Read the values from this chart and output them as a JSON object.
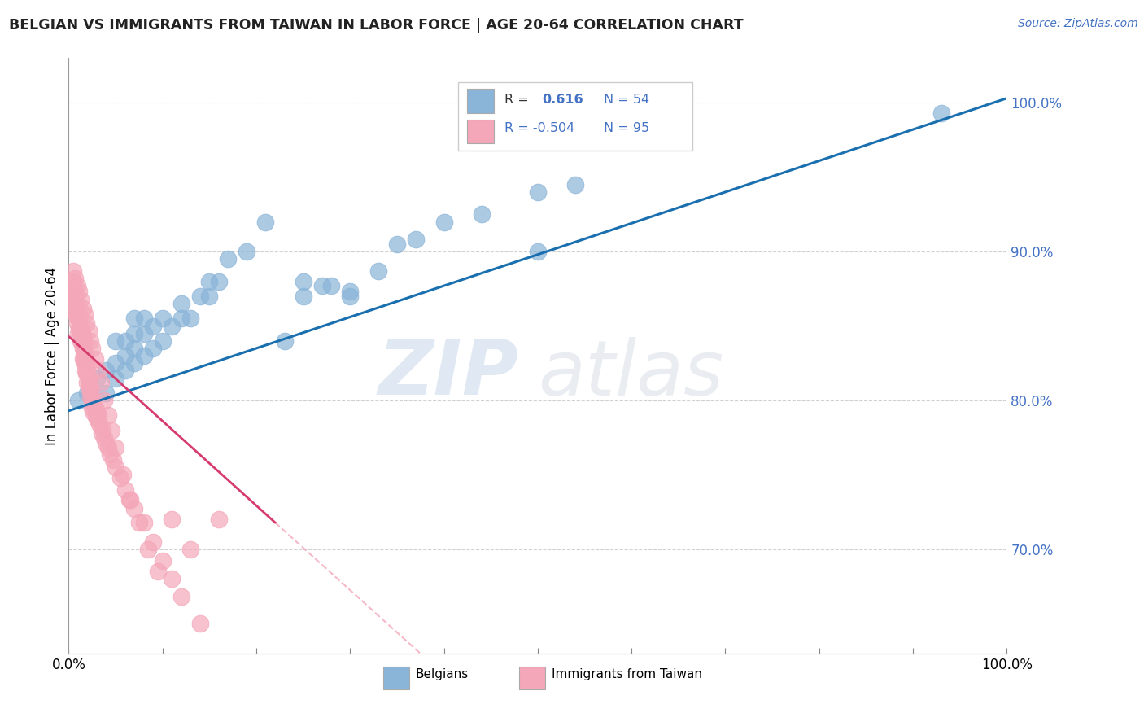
{
  "title": "BELGIAN VS IMMIGRANTS FROM TAIWAN IN LABOR FORCE | AGE 20-64 CORRELATION CHART",
  "source": "Source: ZipAtlas.com",
  "ylabel": "In Labor Force | Age 20-64",
  "xlim": [
    0.0,
    1.0
  ],
  "ylim": [
    0.63,
    1.03
  ],
  "ytick_positions": [
    0.7,
    0.8,
    0.9,
    1.0
  ],
  "ytick_labels": [
    "70.0%",
    "80.0%",
    "90.0%",
    "100.0%"
  ],
  "xtick_positions": [
    0.0,
    0.1,
    0.2,
    0.3,
    0.4,
    0.5,
    0.6,
    0.7,
    0.8,
    0.9,
    1.0
  ],
  "blue_color": "#8ab4d8",
  "pink_color": "#f4a7b9",
  "blue_line_color": "#1a6faf",
  "pink_line_solid_color": "#d63b6e",
  "pink_line_dash_color": "#f4a7b9",
  "watermark_zip": "ZIP",
  "watermark_atlas": "atlas",
  "blue_scatter_x": [
    0.01,
    0.02,
    0.03,
    0.04,
    0.04,
    0.05,
    0.05,
    0.05,
    0.06,
    0.06,
    0.06,
    0.07,
    0.07,
    0.07,
    0.07,
    0.08,
    0.08,
    0.08,
    0.09,
    0.09,
    0.1,
    0.1,
    0.11,
    0.12,
    0.12,
    0.13,
    0.14,
    0.15,
    0.15,
    0.16,
    0.17,
    0.19,
    0.21,
    0.23,
    0.25,
    0.27,
    0.3,
    0.35,
    0.4,
    0.44,
    0.5,
    0.54,
    0.25,
    0.28,
    0.3,
    0.33,
    0.37,
    0.5,
    0.93
  ],
  "blue_scatter_y": [
    0.8,
    0.805,
    0.815,
    0.805,
    0.82,
    0.815,
    0.825,
    0.84,
    0.82,
    0.83,
    0.84,
    0.825,
    0.835,
    0.845,
    0.855,
    0.83,
    0.845,
    0.855,
    0.835,
    0.85,
    0.84,
    0.855,
    0.85,
    0.855,
    0.865,
    0.855,
    0.87,
    0.87,
    0.88,
    0.88,
    0.895,
    0.9,
    0.92,
    0.84,
    0.87,
    0.877,
    0.873,
    0.905,
    0.92,
    0.925,
    0.9,
    0.945,
    0.88,
    0.877,
    0.87,
    0.887,
    0.908,
    0.94,
    0.993
  ],
  "pink_scatter_x": [
    0.003,
    0.004,
    0.005,
    0.006,
    0.006,
    0.007,
    0.007,
    0.008,
    0.008,
    0.009,
    0.009,
    0.01,
    0.01,
    0.01,
    0.011,
    0.011,
    0.012,
    0.012,
    0.013,
    0.013,
    0.014,
    0.014,
    0.015,
    0.015,
    0.015,
    0.016,
    0.016,
    0.017,
    0.017,
    0.018,
    0.018,
    0.019,
    0.019,
    0.02,
    0.02,
    0.021,
    0.021,
    0.022,
    0.023,
    0.023,
    0.024,
    0.025,
    0.025,
    0.026,
    0.027,
    0.028,
    0.029,
    0.03,
    0.031,
    0.032,
    0.033,
    0.035,
    0.036,
    0.038,
    0.04,
    0.042,
    0.044,
    0.047,
    0.05,
    0.055,
    0.06,
    0.065,
    0.07,
    0.08,
    0.09,
    0.1,
    0.11,
    0.12,
    0.14,
    0.16,
    0.005,
    0.007,
    0.009,
    0.011,
    0.013,
    0.015,
    0.017,
    0.019,
    0.021,
    0.023,
    0.025,
    0.028,
    0.031,
    0.034,
    0.038,
    0.042,
    0.046,
    0.05,
    0.058,
    0.066,
    0.075,
    0.085,
    0.095,
    0.11,
    0.13
  ],
  "pink_scatter_y": [
    0.875,
    0.87,
    0.88,
    0.875,
    0.865,
    0.87,
    0.86,
    0.865,
    0.857,
    0.858,
    0.852,
    0.86,
    0.855,
    0.845,
    0.855,
    0.848,
    0.85,
    0.843,
    0.848,
    0.84,
    0.845,
    0.838,
    0.842,
    0.835,
    0.828,
    0.838,
    0.83,
    0.832,
    0.825,
    0.828,
    0.82,
    0.825,
    0.818,
    0.82,
    0.812,
    0.815,
    0.808,
    0.812,
    0.808,
    0.802,
    0.805,
    0.8,
    0.795,
    0.798,
    0.792,
    0.795,
    0.789,
    0.792,
    0.787,
    0.79,
    0.784,
    0.778,
    0.781,
    0.775,
    0.771,
    0.768,
    0.764,
    0.76,
    0.755,
    0.748,
    0.74,
    0.733,
    0.727,
    0.718,
    0.705,
    0.692,
    0.68,
    0.668,
    0.65,
    0.72,
    0.887,
    0.882,
    0.877,
    0.873,
    0.868,
    0.862,
    0.858,
    0.852,
    0.847,
    0.84,
    0.835,
    0.828,
    0.82,
    0.812,
    0.8,
    0.79,
    0.78,
    0.768,
    0.75,
    0.733,
    0.718,
    0.7,
    0.685,
    0.72,
    0.7
  ]
}
